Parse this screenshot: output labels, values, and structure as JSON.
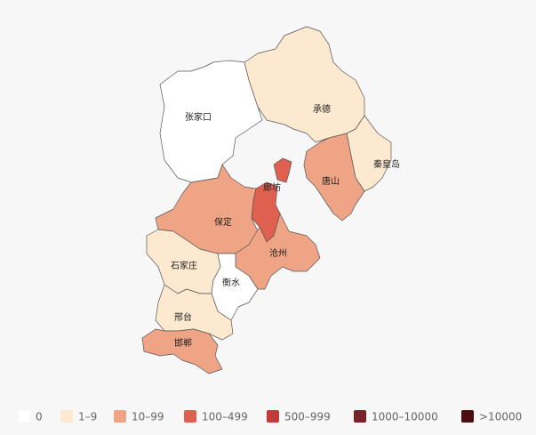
{
  "regions": [
    {
      "name": "张家口",
      "level": 0
    },
    {
      "name": "承德",
      "level": 1
    },
    {
      "name": "秦皇岛",
      "level": 1
    },
    {
      "name": "唐山",
      "level": 2
    },
    {
      "name": "廊坊",
      "level": 3
    },
    {
      "name": "保定",
      "level": 2
    },
    {
      "name": "沧州",
      "level": 2
    },
    {
      "name": "石家庄",
      "level": 1
    },
    {
      "name": "衡水",
      "level": 0
    },
    {
      "name": "邢台",
      "level": 1
    },
    {
      "name": "邯郸",
      "level": 2
    }
  ],
  "legend": [
    {
      "label": "0",
      "color": "#ffffff"
    },
    {
      "label": "1–9",
      "color": "#fde9d0"
    },
    {
      "label": "10–99",
      "color": "#f0a486"
    },
    {
      "label": "100–499",
      "color": "#e06050"
    },
    {
      "label": "500–999",
      "color": "#c33a3a"
    },
    {
      "label": "1000–10000",
      "color": "#7a2228"
    },
    {
      "label": ">10000",
      "color": "#4a0e10"
    }
  ]
}
